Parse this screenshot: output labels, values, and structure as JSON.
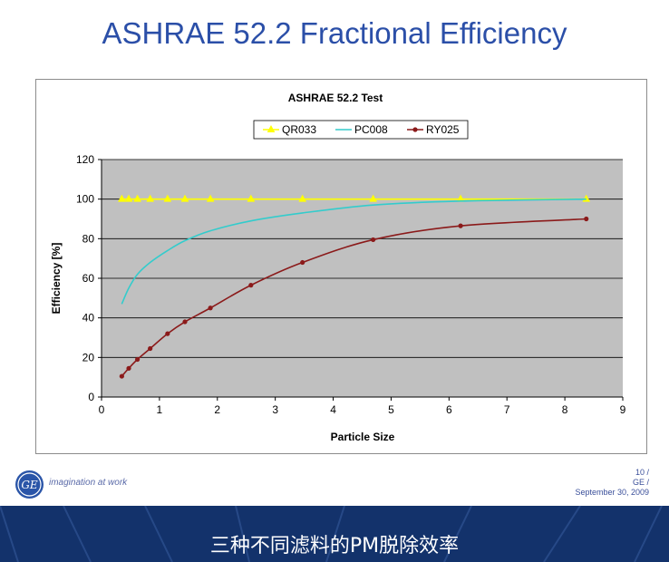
{
  "slide": {
    "title": "ASHRAE 52.2 Fractional Efficiency",
    "tagline": "imagination at work",
    "logo_text": "GE",
    "footer_right": [
      "10 /",
      "GE /",
      "September 30, 2009"
    ],
    "banner_text": "三种不同滤料的PM脱除效率",
    "colors": {
      "title": "#2b4fa8",
      "banner": "#13326b",
      "plot_bg": "#c0c0c0"
    }
  },
  "chart_data": {
    "type": "line",
    "title": "ASHRAE 52.2 Test",
    "xlabel": "Particle Size",
    "ylabel": "Efficiency [%]",
    "xlim": [
      0,
      9
    ],
    "ylim": [
      0,
      120
    ],
    "xticks": [
      0,
      1,
      2,
      3,
      4,
      5,
      6,
      7,
      8,
      9
    ],
    "yticks": [
      0,
      20,
      40,
      60,
      80,
      100,
      120
    ],
    "grid": "horizontal",
    "legend": "top",
    "series": [
      {
        "name": "QR033",
        "color": "#ffff00",
        "marker": "triangle",
        "x": [
          0.35,
          0.47,
          0.62,
          0.84,
          1.14,
          1.44,
          1.88,
          2.58,
          3.47,
          4.69,
          6.2,
          8.37
        ],
        "y": [
          100,
          100,
          100,
          100,
          100,
          100,
          100,
          100,
          100,
          100,
          100,
          100
        ]
      },
      {
        "name": "PC008",
        "color": "#33cccc",
        "marker": "none",
        "x": [
          0.35,
          0.47,
          0.62,
          0.84,
          1.14,
          1.44,
          1.88,
          2.58,
          3.47,
          4.69,
          6.2,
          8.37
        ],
        "y": [
          47,
          55,
          62,
          68,
          74,
          79,
          84,
          89,
          93,
          97,
          99,
          100
        ]
      },
      {
        "name": "RY025",
        "color": "#8b1a1a",
        "marker": "circle",
        "x": [
          0.35,
          0.47,
          0.62,
          0.84,
          1.14,
          1.44,
          1.88,
          2.58,
          3.47,
          4.69,
          6.2,
          8.37
        ],
        "y": [
          10.5,
          14.5,
          19,
          24.5,
          32,
          38,
          45,
          56.5,
          68,
          79.5,
          86.5,
          90
        ]
      }
    ]
  }
}
